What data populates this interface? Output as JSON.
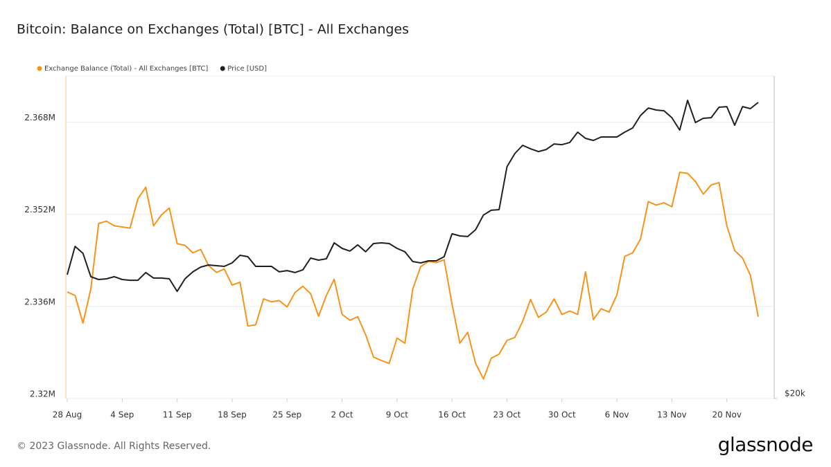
{
  "chart_data": {
    "type": "line",
    "title": "Bitcoin: Balance on Exchanges (Total) [BTC] - All Exchanges",
    "categories": [
      "28 Aug",
      null,
      null,
      null,
      null,
      null,
      null,
      "4 Sep",
      null,
      null,
      null,
      null,
      null,
      null,
      "11 Sep",
      null,
      null,
      null,
      null,
      null,
      null,
      "18 Sep",
      null,
      null,
      null,
      null,
      null,
      null,
      "25 Sep",
      null,
      null,
      null,
      null,
      null,
      null,
      "2 Oct",
      null,
      null,
      null,
      null,
      null,
      null,
      "9 Oct",
      null,
      null,
      null,
      null,
      null,
      null,
      "16 Oct",
      null,
      null,
      null,
      null,
      null,
      null,
      "23 Oct",
      null,
      null,
      null,
      null,
      null,
      null,
      "30 Oct",
      null,
      null,
      null,
      null,
      null,
      null,
      "6 Nov",
      null,
      null,
      null,
      null,
      null,
      null,
      "13 Nov",
      null,
      null,
      null,
      null,
      null,
      null,
      "20 Nov",
      null,
      null,
      null,
      null
    ],
    "series": [
      {
        "name": "Exchange Balance (Total) - All Exchanges [BTC]",
        "color": "#f7931a",
        "values": [
          2.3385,
          2.3379,
          2.3331,
          2.339,
          2.3504,
          2.3508,
          2.35,
          2.3498,
          2.3496,
          2.3547,
          2.3567,
          2.35,
          2.3519,
          2.3531,
          2.3469,
          2.3466,
          2.3453,
          2.3459,
          2.3431,
          2.3419,
          2.3425,
          2.3397,
          2.3402,
          2.3326,
          2.3328,
          2.3373,
          2.3368,
          2.337,
          2.3359,
          2.3384,
          2.3395,
          2.3382,
          2.3343,
          2.3379,
          2.3407,
          2.3346,
          2.3336,
          2.3342,
          2.3311,
          2.3272,
          2.3266,
          2.3261,
          2.3305,
          2.3296,
          2.339,
          2.3429,
          2.3438,
          2.3436,
          2.3441,
          2.3364,
          2.3296,
          2.3315,
          2.3261,
          2.3234,
          2.327,
          2.3277,
          2.3301,
          2.3306,
          2.3334,
          2.3372,
          2.3341,
          2.335,
          2.3373,
          2.3346,
          2.3352,
          2.3346,
          2.342,
          2.3337,
          2.3356,
          2.335,
          2.338,
          2.3447,
          2.3453,
          2.3477,
          2.3542,
          2.3536,
          2.354,
          2.3533,
          2.3593,
          2.3591,
          2.3577,
          2.3555,
          2.3571,
          2.3575,
          2.35,
          2.3457,
          2.3444,
          2.3414,
          2.3342
        ]
      },
      {
        "name": "Price [USD]",
        "color": "#1f1f1f",
        "axis": "y2",
        "values": [
          26100,
          27740,
          27330,
          25990,
          25830,
          25870,
          25990,
          25830,
          25790,
          25790,
          26220,
          25910,
          25910,
          25870,
          25180,
          25870,
          26260,
          26530,
          26650,
          26610,
          26570,
          26770,
          27210,
          27130,
          26570,
          26570,
          26570,
          26260,
          26330,
          26220,
          26370,
          27050,
          26930,
          27010,
          27950,
          27620,
          27460,
          27830,
          27420,
          27910,
          27950,
          27910,
          27620,
          27420,
          26850,
          26770,
          26890,
          26890,
          27130,
          28500,
          28370,
          28330,
          28750,
          29670,
          29980,
          30020,
          32920,
          33860,
          34470,
          34210,
          34010,
          34160,
          34570,
          34520,
          34680,
          35460,
          34990,
          34830,
          35090,
          35090,
          35090,
          35460,
          35780,
          36750,
          37350,
          37190,
          37130,
          36580,
          35620,
          37970,
          36200,
          36530,
          36580,
          37410,
          37460,
          35990,
          37460,
          37300,
          37800
        ]
      }
    ],
    "ylim": [
      2.32,
      2.376
    ],
    "yticks": [
      {
        "value": 2.32,
        "label": "2.32M"
      },
      {
        "value": 2.336,
        "label": "2.336M"
      },
      {
        "value": 2.352,
        "label": "2.352M"
      },
      {
        "value": 2.368,
        "label": "2.368M"
      }
    ],
    "y2lim": [
      20000,
      40000
    ],
    "y2ticks": [
      {
        "value": 20000,
        "label": "$20k"
      }
    ],
    "y2scale": "log",
    "grid": true,
    "legend": "top-left"
  },
  "footer": "© 2023 Glassnode. All Rights Reserved.",
  "brand": "glassnode"
}
